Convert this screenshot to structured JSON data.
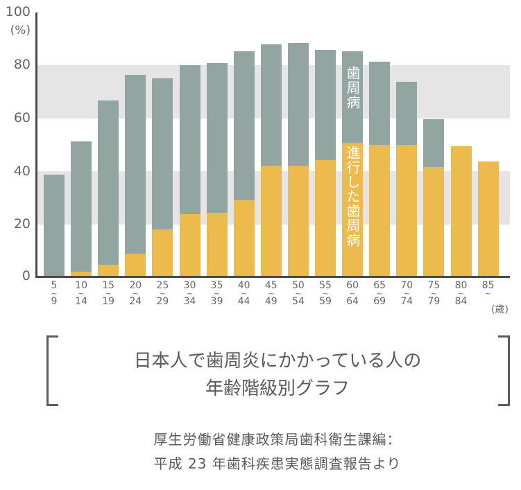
{
  "chart_data": {
    "type": "bar",
    "stacked": "overlaid",
    "title": "日本人で歯周炎にかかっている人の年齢階級別グラフ",
    "ylabel": "(%)",
    "xlabel": "(歳)",
    "ylim": [
      0,
      100
    ],
    "yticks": [
      0,
      20,
      40,
      60,
      80,
      100
    ],
    "categories": [
      "5~9",
      "10~14",
      "15~19",
      "20~24",
      "25~29",
      "30~34",
      "35~39",
      "40~44",
      "45~49",
      "50~54",
      "55~59",
      "60~64",
      "65~69",
      "70~74",
      "75~79",
      "80~84",
      "85~"
    ],
    "series": [
      {
        "name": "歯周病",
        "color": "#93a5a0",
        "values": [
          38.4,
          51,
          66.6,
          76.3,
          75,
          80,
          80.8,
          85.3,
          87.9,
          88.4,
          85.8,
          85.3,
          81.3,
          73.7,
          59.5,
          49.2,
          43.4
        ]
      },
      {
        "name": "進行した歯周病",
        "color": "#ecba4d",
        "values": [
          0,
          1.6,
          4.2,
          8.4,
          17.6,
          23.4,
          24,
          28.7,
          41.8,
          41.8,
          43.9,
          50.5,
          49.7,
          49.7,
          41.3,
          49.2,
          43.4
        ]
      }
    ],
    "grid_bands": [
      [
        20,
        40
      ],
      [
        60,
        80
      ]
    ],
    "band_color": "#e5e5e5",
    "annotations": [
      "歯周病",
      "進行した歯周病"
    ],
    "source": "厚生労働省健康政策局歯科衛生課編：平成 23 年歯科疾患実態調査報告より"
  },
  "axis": {
    "y_ticks": [
      "0",
      "20",
      "40",
      "60",
      "80",
      "100"
    ],
    "y_unit": "(%)",
    "x_unit": "(歳)",
    "x_labels": [
      {
        "top": "5",
        "bottom": "9"
      },
      {
        "top": "10",
        "bottom": "14"
      },
      {
        "top": "15",
        "bottom": "19"
      },
      {
        "top": "20",
        "bottom": "24"
      },
      {
        "top": "25",
        "bottom": "29"
      },
      {
        "top": "30",
        "bottom": "34"
      },
      {
        "top": "35",
        "bottom": "39"
      },
      {
        "top": "40",
        "bottom": "44"
      },
      {
        "top": "45",
        "bottom": "49"
      },
      {
        "top": "50",
        "bottom": "54"
      },
      {
        "top": "55",
        "bottom": "59"
      },
      {
        "top": "60",
        "bottom": "64"
      },
      {
        "top": "65",
        "bottom": "69"
      },
      {
        "top": "70",
        "bottom": "74"
      },
      {
        "top": "75",
        "bottom": "79"
      },
      {
        "top": "80",
        "bottom": "84"
      },
      {
        "top": "85",
        "bottom": ""
      }
    ],
    "tilde": "~"
  },
  "labels": {
    "periodontal": "歯周病",
    "advanced": "進行した歯周病"
  },
  "title": {
    "line1": "日本人で歯周炎にかかっている人の",
    "line2": "年齢階級別グラフ"
  },
  "source": {
    "line1": "厚生労働省健康政策局歯科衛生課編：",
    "line2": "平成 23 年歯科疾患実態調査報告より"
  }
}
